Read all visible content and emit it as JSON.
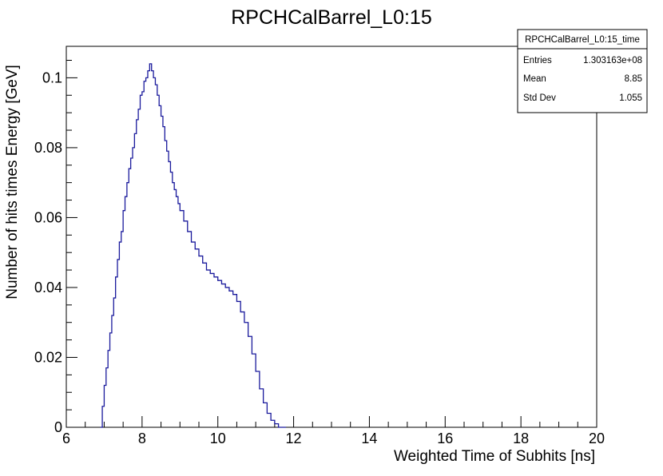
{
  "chart_data": {
    "type": "line",
    "title": "RPCHCalBarrel_L0:15",
    "xlabel": "Weighted Time of Subhits [ns]",
    "ylabel": "Number of hits times Energy [GeV]",
    "xlim": [
      6,
      20
    ],
    "ylim": [
      0,
      0.109
    ],
    "x_ticks": [
      6,
      8,
      10,
      12,
      14,
      16,
      18,
      20
    ],
    "y_ticks": [
      0,
      0.02,
      0.04,
      0.06,
      0.08,
      0.1
    ],
    "x_tick_labels": [
      "6",
      "8",
      "10",
      "12",
      "14",
      "16",
      "18",
      "20"
    ],
    "y_tick_labels": [
      "0",
      "0.02",
      "0.04",
      "0.06",
      "0.08",
      "0.1"
    ],
    "grid": false,
    "series_color": "#1a1a9c",
    "series": [
      {
        "x": [
          6.9,
          6.95,
          7.0,
          7.05,
          7.1,
          7.15,
          7.2,
          7.25,
          7.3,
          7.35,
          7.4,
          7.45,
          7.5,
          7.55,
          7.6,
          7.65,
          7.7,
          7.75,
          7.8,
          7.85,
          7.9,
          7.95,
          8.0,
          8.05,
          8.1,
          8.15,
          8.2,
          8.25,
          8.3,
          8.35,
          8.4,
          8.45,
          8.5,
          8.55,
          8.6,
          8.65,
          8.7,
          8.75,
          8.8,
          8.85,
          8.9,
          8.95,
          9.0,
          9.1,
          9.2,
          9.3,
          9.4,
          9.5,
          9.6,
          9.7,
          9.8,
          9.9,
          10.0,
          10.1,
          10.2,
          10.3,
          10.4,
          10.5,
          10.6,
          10.7,
          10.8,
          10.9,
          11.0,
          11.1,
          11.2,
          11.3,
          11.4,
          11.5,
          11.6,
          11.7,
          11.8
        ],
        "y": [
          0.0,
          0.006,
          0.012,
          0.017,
          0.022,
          0.027,
          0.032,
          0.037,
          0.043,
          0.048,
          0.053,
          0.056,
          0.062,
          0.066,
          0.07,
          0.074,
          0.077,
          0.08,
          0.084,
          0.088,
          0.091,
          0.095,
          0.096,
          0.099,
          0.1,
          0.102,
          0.104,
          0.102,
          0.1,
          0.098,
          0.095,
          0.092,
          0.089,
          0.086,
          0.082,
          0.079,
          0.076,
          0.073,
          0.07,
          0.068,
          0.066,
          0.064,
          0.062,
          0.059,
          0.056,
          0.053,
          0.051,
          0.049,
          0.047,
          0.045,
          0.044,
          0.043,
          0.042,
          0.041,
          0.04,
          0.039,
          0.038,
          0.036,
          0.033,
          0.03,
          0.026,
          0.021,
          0.016,
          0.011,
          0.007,
          0.004,
          0.002,
          0.001,
          0.0,
          0.0,
          0.0
        ]
      }
    ],
    "legend": "none"
  },
  "stats": {
    "name": "RPCHCalBarrel_L0:15_time",
    "rows": [
      {
        "label": "Entries",
        "value": "1.303163e+08"
      },
      {
        "label": "Mean",
        "value": "8.85"
      },
      {
        "label": "Std Dev",
        "value": "1.055"
      }
    ],
    "placement": "top-right"
  }
}
